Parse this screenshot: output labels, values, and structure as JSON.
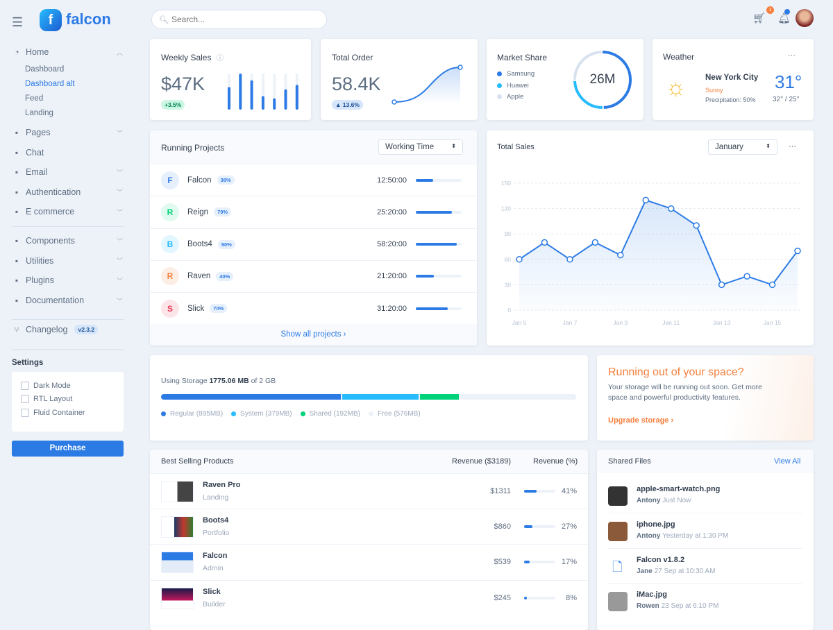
{
  "brand": "falcon",
  "search": {
    "placeholder": "Search..."
  },
  "topbar": {
    "cart_count": "1"
  },
  "sidebar": {
    "home": "Home",
    "home_items": [
      "Dashboard",
      "Dashboard alt",
      "Feed",
      "Landing"
    ],
    "items": [
      {
        "label": "Pages",
        "icon": "pages-icon"
      },
      {
        "label": "Chat",
        "icon": "chat-icon"
      },
      {
        "label": "Email",
        "icon": "email-icon"
      },
      {
        "label": "Authentication",
        "icon": "lock-icon"
      },
      {
        "label": "E commerce",
        "icon": "cart-icon"
      }
    ],
    "items2": [
      {
        "label": "Components",
        "icon": "puzzle-icon"
      },
      {
        "label": "Utilities",
        "icon": "fire-icon"
      },
      {
        "label": "Plugins",
        "icon": "plug-icon"
      },
      {
        "label": "Documentation",
        "icon": "book-icon"
      }
    ],
    "changelog": "Changelog",
    "version": "v2.3.2",
    "settings_title": "Settings",
    "settings": [
      "Dark Mode",
      "RTL Layout",
      "Fluid Container"
    ],
    "purchase": "Purchase"
  },
  "weekly_sales": {
    "title": "Weekly Sales",
    "value": "$47K",
    "change": "+3.5%",
    "bars": [
      50,
      80,
      65,
      30,
      25,
      45,
      55
    ]
  },
  "total_order": {
    "title": "Total Order",
    "value": "58.4K",
    "change": "▲ 13.6%"
  },
  "market_share": {
    "title": "Market Share",
    "total": "26M",
    "legend": [
      {
        "name": "Samsung",
        "color": "#2c7be5",
        "value": 50
      },
      {
        "name": "Huawei",
        "color": "#27bcfd",
        "value": 25
      },
      {
        "name": "Apple",
        "color": "#d8e2ef",
        "value": 25
      }
    ]
  },
  "weather": {
    "title": "Weather",
    "city": "New York City",
    "condition": "Sunny",
    "precipitation": "Precipitation: 50%",
    "temp": "31°",
    "range": "32° / 25°",
    "menu": "···"
  },
  "running_projects": {
    "title": "Running Projects",
    "select": "Working Time",
    "show_all": "Show all projects ›",
    "rows": [
      {
        "initial": "F",
        "name": "Falcon",
        "pct": "38%",
        "time": "12:50:00",
        "progress": 38,
        "color": "#2c7be5",
        "bg": "#e6effc"
      },
      {
        "initial": "R",
        "name": "Reign",
        "pct": "79%",
        "time": "25:20:00",
        "progress": 79,
        "color": "#00d27a",
        "bg": "#e0faef"
      },
      {
        "initial": "B",
        "name": "Boots4",
        "pct": "90%",
        "time": "58:20:00",
        "progress": 90,
        "color": "#27bcfd",
        "bg": "#e2f6ff"
      },
      {
        "initial": "R",
        "name": "Raven",
        "pct": "40%",
        "time": "21:20:00",
        "progress": 40,
        "color": "#f5803e",
        "bg": "#fdeee5"
      },
      {
        "initial": "S",
        "name": "Slick",
        "pct": "70%",
        "time": "31:20:00",
        "progress": 70,
        "color": "#e63757",
        "bg": "#fce5e9"
      }
    ]
  },
  "chart_data": {
    "type": "area",
    "title": "Total Sales",
    "x": [
      "Jan 5",
      "Jan 6",
      "Jan 7",
      "Jan 8",
      "Jan 9",
      "Jan 10",
      "Jan 11",
      "Jan 12",
      "Jan 13",
      "Jan 14",
      "Jan 15",
      "Jan 16"
    ],
    "values": [
      60,
      80,
      60,
      80,
      65,
      130,
      120,
      100,
      30,
      40,
      30,
      70
    ],
    "xticks": [
      "Jan 5",
      "Jan 7",
      "Jan 9",
      "Jan 11",
      "Jan 13",
      "Jan 15"
    ],
    "yticks": [
      0,
      30,
      60,
      90,
      120,
      150
    ],
    "ylim": [
      0,
      150
    ],
    "grid": true,
    "color": "#2c7be5",
    "select": "January",
    "menu": "···"
  },
  "storage": {
    "label": "Using Storage",
    "used": "1775.06 MB",
    "of": "of 2 GB",
    "segments": [
      {
        "name": "Regular (895MB)",
        "mb": 895,
        "color": "#2c7be5"
      },
      {
        "name": "System (379MB)",
        "mb": 379,
        "color": "#27bcfd"
      },
      {
        "name": "Shared (192MB)",
        "mb": 192,
        "color": "#00d27a"
      },
      {
        "name": "Free (576MB)",
        "mb": 576,
        "color": "#edf2f9"
      }
    ]
  },
  "space": {
    "title": "Running out of your space?",
    "text": "Your storage will be running out soon. Get more space and powerful productivity features.",
    "link": "Upgrade storage ›"
  },
  "products": {
    "title": "Best Selling Products",
    "col1": "Revenue ($3189)",
    "col2": "Revenue (%)",
    "rows": [
      {
        "name": "Raven Pro",
        "type": "Landing",
        "revenue": "$1311",
        "pct": "41%",
        "value": 41
      },
      {
        "name": "Boots4",
        "type": "Portfolio",
        "revenue": "$860",
        "pct": "27%",
        "value": 27
      },
      {
        "name": "Falcon",
        "type": "Admin",
        "revenue": "$539",
        "pct": "17%",
        "value": 17
      },
      {
        "name": "Slick",
        "type": "Builder",
        "revenue": "$245",
        "pct": "8%",
        "value": 8
      }
    ]
  },
  "files": {
    "title": "Shared Files",
    "view_all": "View All",
    "rows": [
      {
        "name": "apple-smart-watch.png",
        "user": "Antony",
        "time": "Just Now"
      },
      {
        "name": "iphone.jpg",
        "user": "Antony",
        "time": "Yesterday at 1:30 PM"
      },
      {
        "name": "Falcon v1.8.2",
        "user": "Jane",
        "time": "27 Sep at 10:30 AM"
      },
      {
        "name": "iMac.jpg",
        "user": "Rowen",
        "time": "23 Sep at 6:10 PM"
      }
    ]
  }
}
